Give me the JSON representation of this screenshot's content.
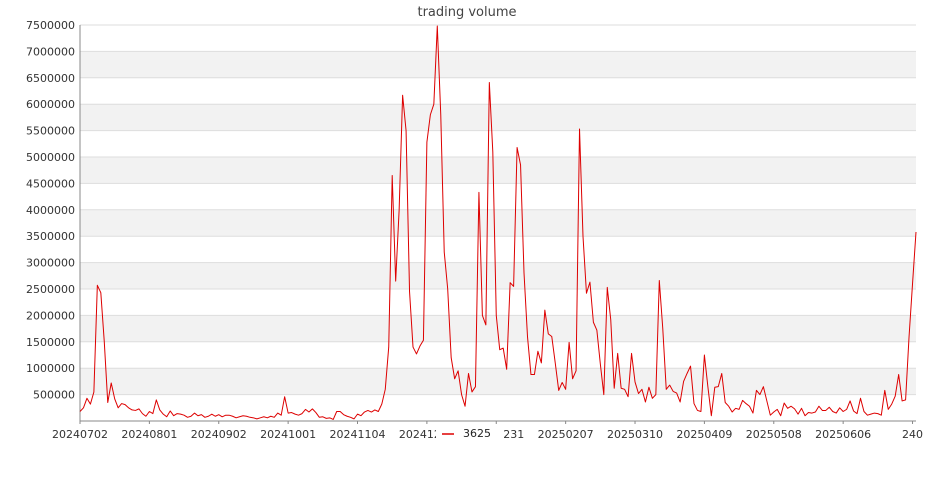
{
  "chart_data": {
    "type": "line",
    "title": "trading volume",
    "xlabel": "",
    "ylabel": "",
    "ylim": [
      0,
      7500000
    ],
    "y_ticks": [
      500000,
      1000000,
      1500000,
      2000000,
      2500000,
      3000000,
      3500000,
      4000000,
      4500000,
      5000000,
      5500000,
      6000000,
      6500000,
      7000000,
      7500000
    ],
    "y_tick_labels": [
      "500000",
      "1000000",
      "1500000",
      "2000000",
      "2500000",
      "3000000",
      "3500000",
      "4000000",
      "4500000",
      "5000000",
      "5500000",
      "6000000",
      "6500000",
      "7000000",
      "7500000"
    ],
    "x_ticks": [
      {
        "label": "20240702",
        "index": 0
      },
      {
        "label": "20240801",
        "index": 20
      },
      {
        "label": "20240902",
        "index": 40
      },
      {
        "label": "20241001",
        "index": 60
      },
      {
        "label": "20241104",
        "index": 80
      },
      {
        "label": "20241203",
        "index": 100
      },
      {
        "label": "20241231",
        "index": 120
      },
      {
        "label": "20250207",
        "index": 140
      },
      {
        "label": "20250310",
        "index": 160
      },
      {
        "label": "20250409",
        "index": 180
      },
      {
        "label": "20250508",
        "index": 200
      },
      {
        "label": "20250606",
        "index": 220
      },
      {
        "label": "240",
        "index": 240
      }
    ],
    "grid": true,
    "legend": "bottom-center",
    "colors": {
      "line": "#dd0000",
      "band": "#f2f2f2",
      "grid": "#dddddd",
      "axis": "#888888"
    },
    "series": [
      {
        "name": "3625",
        "values": [
          180000,
          250000,
          430000,
          320000,
          550000,
          2570000,
          2430000,
          1500000,
          350000,
          720000,
          420000,
          250000,
          330000,
          310000,
          250000,
          210000,
          200000,
          230000,
          140000,
          90000,
          180000,
          140000,
          400000,
          210000,
          130000,
          80000,
          190000,
          100000,
          140000,
          130000,
          110000,
          70000,
          90000,
          150000,
          100000,
          120000,
          70000,
          90000,
          130000,
          90000,
          120000,
          80000,
          110000,
          110000,
          90000,
          60000,
          80000,
          100000,
          90000,
          70000,
          60000,
          40000,
          60000,
          80000,
          60000,
          90000,
          70000,
          150000,
          110000,
          460000,
          150000,
          160000,
          130000,
          110000,
          140000,
          220000,
          170000,
          230000,
          160000,
          70000,
          80000,
          50000,
          60000,
          30000,
          180000,
          180000,
          120000,
          90000,
          70000,
          40000,
          130000,
          100000,
          170000,
          200000,
          170000,
          210000,
          180000,
          320000,
          600000,
          1400000,
          4650000,
          2650000,
          4000000,
          6170000,
          5500000,
          2450000,
          1400000,
          1270000,
          1420000,
          1530000,
          5280000,
          5800000,
          6000000,
          7480000,
          5800000,
          3200000,
          2500000,
          1200000,
          800000,
          950000,
          500000,
          280000,
          900000,
          550000,
          650000,
          4330000,
          2000000,
          1820000,
          6410000,
          5100000,
          2000000,
          1350000,
          1380000,
          980000,
          2620000,
          2550000,
          5180000,
          4850000,
          2800000,
          1600000,
          880000,
          880000,
          1320000,
          1100000,
          2100000,
          1650000,
          1600000,
          1100000,
          580000,
          730000,
          600000,
          1490000,
          800000,
          950000,
          5530000,
          3500000,
          2420000,
          2630000,
          1870000,
          1720000,
          1080000,
          500000,
          2530000,
          1920000,
          620000,
          1280000,
          620000,
          600000,
          460000,
          1280000,
          740000,
          520000,
          600000,
          360000,
          640000,
          430000,
          500000,
          2660000,
          1750000,
          600000,
          680000,
          560000,
          530000,
          360000,
          750000,
          900000,
          1040000,
          330000,
          200000,
          180000,
          1250000,
          650000,
          100000,
          640000,
          650000,
          900000,
          350000,
          280000,
          170000,
          240000,
          220000,
          390000,
          330000,
          280000,
          150000,
          580000,
          500000,
          650000,
          380000,
          110000,
          170000,
          220000,
          100000,
          340000,
          240000,
          280000,
          230000,
          130000,
          240000,
          100000,
          160000,
          150000,
          170000,
          280000,
          200000,
          200000,
          260000,
          180000,
          150000,
          250000,
          180000,
          220000,
          380000,
          190000,
          140000,
          430000,
          180000,
          110000,
          130000,
          150000,
          140000,
          110000,
          580000,
          220000,
          320000,
          470000,
          880000,
          380000,
          400000,
          1600000,
          2600000,
          3580000
        ]
      }
    ]
  }
}
